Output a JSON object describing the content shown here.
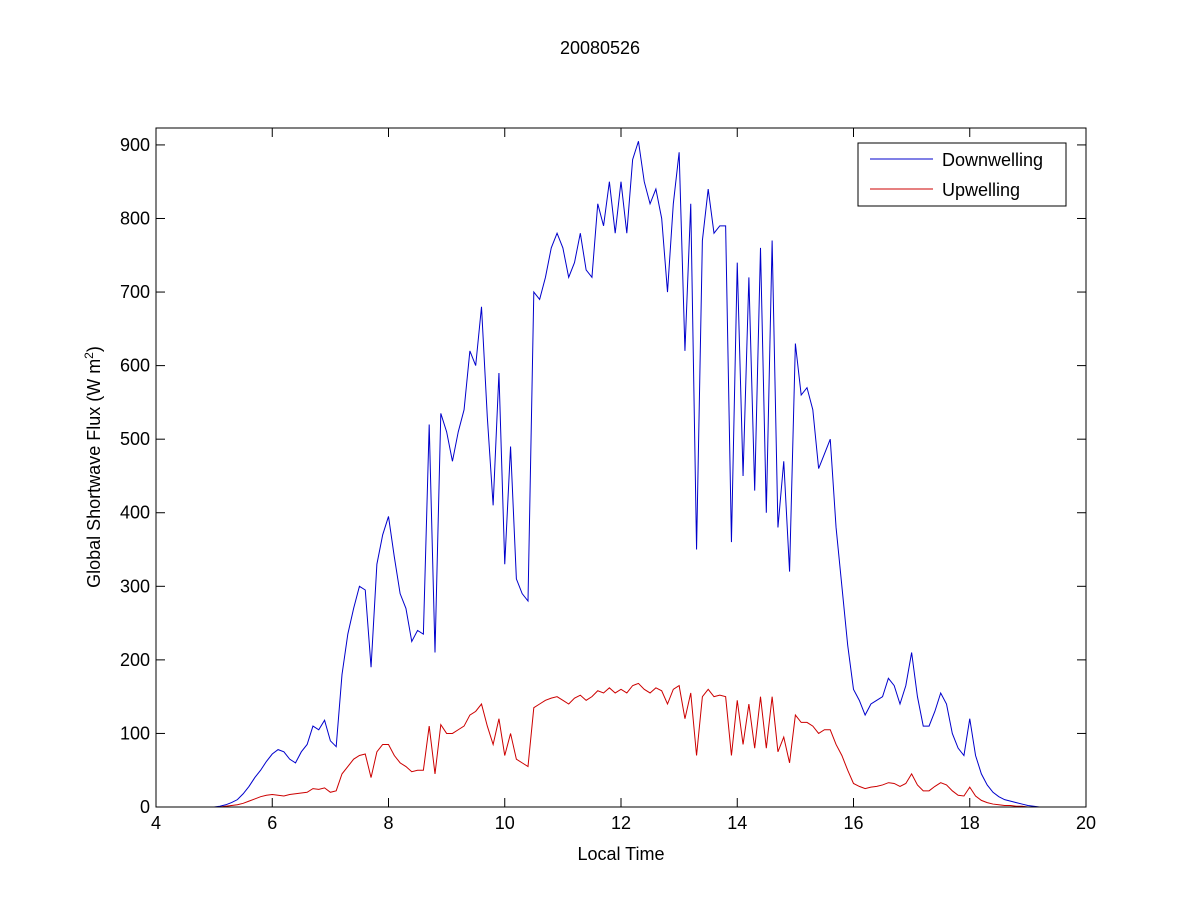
{
  "chart_data": {
    "type": "line",
    "title": "20080526",
    "xlabel": "Local Time",
    "ylabel": {
      "text": "Global Shortwave Flux (W m",
      "superscript": "2",
      "suffix": ")"
    },
    "x": [
      5.0,
      5.1,
      5.2,
      5.3,
      5.4,
      5.5,
      5.6,
      5.7,
      5.8,
      5.9,
      6.0,
      6.1,
      6.2,
      6.3,
      6.4,
      6.5,
      6.6,
      6.7,
      6.8,
      6.9,
      7.0,
      7.1,
      7.2,
      7.3,
      7.4,
      7.5,
      7.6,
      7.7,
      7.8,
      7.9,
      8.0,
      8.1,
      8.2,
      8.3,
      8.4,
      8.5,
      8.6,
      8.7,
      8.8,
      8.9,
      9.0,
      9.1,
      9.2,
      9.3,
      9.4,
      9.5,
      9.6,
      9.7,
      9.8,
      9.9,
      10.0,
      10.1,
      10.2,
      10.3,
      10.4,
      10.5,
      10.6,
      10.7,
      10.8,
      10.9,
      11.0,
      11.1,
      11.2,
      11.3,
      11.4,
      11.5,
      11.6,
      11.7,
      11.8,
      11.9,
      12.0,
      12.1,
      12.2,
      12.3,
      12.4,
      12.5,
      12.6,
      12.7,
      12.8,
      12.9,
      13.0,
      13.1,
      13.2,
      13.3,
      13.4,
      13.5,
      13.6,
      13.7,
      13.8,
      13.9,
      14.0,
      14.1,
      14.2,
      14.3,
      14.4,
      14.5,
      14.6,
      14.7,
      14.8,
      14.9,
      15.0,
      15.1,
      15.2,
      15.3,
      15.4,
      15.5,
      15.6,
      15.7,
      15.8,
      15.9,
      16.0,
      16.1,
      16.2,
      16.3,
      16.4,
      16.5,
      16.6,
      16.7,
      16.8,
      16.9,
      17.0,
      17.1,
      17.2,
      17.3,
      17.4,
      17.5,
      17.6,
      17.7,
      17.8,
      17.9,
      18.0,
      18.1,
      18.2,
      18.3,
      18.4,
      18.5,
      18.6,
      18.7,
      18.8,
      18.9,
      19.0,
      19.1,
      19.2
    ],
    "series": [
      {
        "name": "Downwelling",
        "color": "#0000cc",
        "values": [
          0,
          1,
          3,
          6,
          10,
          18,
          28,
          40,
          50,
          62,
          72,
          78,
          75,
          65,
          60,
          75,
          85,
          110,
          105,
          118,
          90,
          82,
          180,
          235,
          270,
          300,
          295,
          190,
          330,
          370,
          395,
          340,
          290,
          270,
          225,
          240,
          235,
          520,
          210,
          535,
          510,
          470,
          510,
          540,
          620,
          600,
          680,
          530,
          410,
          590,
          330,
          490,
          310,
          290,
          280,
          700,
          690,
          720,
          760,
          780,
          760,
          720,
          740,
          780,
          730,
          720,
          820,
          790,
          850,
          780,
          850,
          780,
          880,
          905,
          850,
          820,
          840,
          800,
          700,
          820,
          890,
          620,
          820,
          350,
          770,
          840,
          780,
          790,
          790,
          360,
          740,
          450,
          720,
          430,
          760,
          400,
          770,
          380,
          470,
          320,
          630,
          560,
          570,
          540,
          460,
          480,
          500,
          380,
          300,
          220,
          160,
          145,
          125,
          140,
          145,
          150,
          175,
          165,
          140,
          165,
          210,
          150,
          110,
          110,
          130,
          155,
          140,
          100,
          80,
          70,
          120,
          70,
          45,
          30,
          20,
          14,
          10,
          8,
          6,
          4,
          2,
          1,
          0
        ]
      },
      {
        "name": "Upwelling",
        "color": "#cc0000",
        "values": [
          0,
          0,
          1,
          2,
          3,
          5,
          8,
          11,
          14,
          16,
          17,
          16,
          15,
          17,
          18,
          19,
          20,
          25,
          24,
          26,
          20,
          22,
          45,
          55,
          65,
          70,
          72,
          40,
          75,
          85,
          85,
          70,
          60,
          55,
          48,
          50,
          50,
          110,
          45,
          112,
          100,
          100,
          105,
          110,
          125,
          130,
          140,
          110,
          85,
          120,
          70,
          100,
          65,
          60,
          55,
          135,
          140,
          145,
          148,
          150,
          145,
          140,
          148,
          152,
          145,
          150,
          158,
          155,
          162,
          155,
          160,
          155,
          165,
          168,
          160,
          155,
          162,
          158,
          140,
          160,
          165,
          120,
          155,
          70,
          150,
          160,
          150,
          152,
          150,
          70,
          145,
          85,
          140,
          80,
          150,
          80,
          150,
          75,
          95,
          60,
          125,
          115,
          115,
          110,
          100,
          105,
          105,
          85,
          70,
          50,
          32,
          28,
          25,
          27,
          28,
          30,
          33,
          32,
          28,
          32,
          45,
          30,
          22,
          22,
          28,
          33,
          30,
          22,
          16,
          15,
          27,
          15,
          9,
          6,
          4,
          3,
          2,
          2,
          1,
          1,
          0,
          0,
          0
        ]
      }
    ],
    "xlim": [
      4,
      20
    ],
    "xticks": [
      4,
      6,
      8,
      10,
      12,
      14,
      16,
      18,
      20
    ],
    "ylim": [
      0,
      923
    ],
    "yticks": [
      0,
      100,
      200,
      300,
      400,
      500,
      600,
      700,
      800,
      900
    ],
    "grid": false,
    "legend": "northeast"
  }
}
